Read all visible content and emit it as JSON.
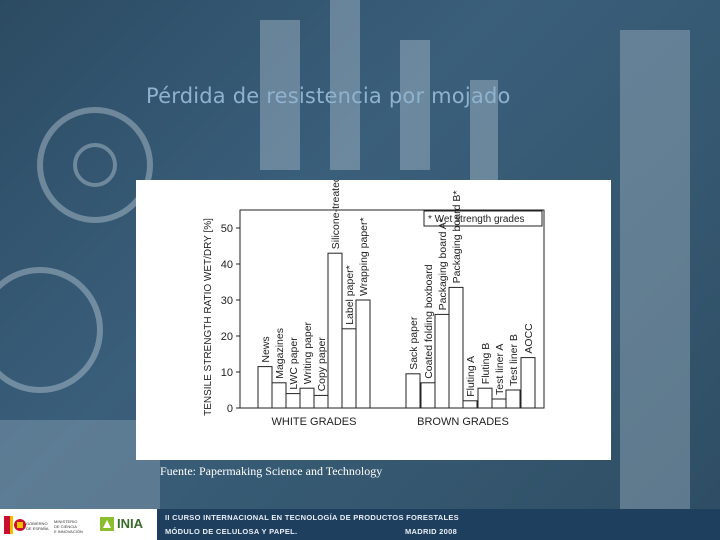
{
  "slide": {
    "title": "Pérdida de resistencia por mojado",
    "source": "Fuente: Papermaking Science and Technology"
  },
  "footer": {
    "line1": "II CURSO INTERNACIONAL EN TECNOLOGÍA DE PRODUCTOS FORESTALES",
    "line2": "MÓDULO DE CELULOSA Y PAPEL.",
    "line3": "MADRID 2008",
    "logo_gob_1": "GOBIERNO",
    "logo_gob_2": "DE ESPAÑA",
    "logo_min_1": "MINISTERIO",
    "logo_min_2": "DE CIENCIA",
    "logo_min_3": "E INNOVACIÓN",
    "logo_inia": "INIA",
    "colors": {
      "band": "#1f3f5f",
      "text": "#e8eef4"
    }
  },
  "chart_data": {
    "type": "bar",
    "ylabel": "TENSILE STRENGTH RATIO WET/DRY [%]",
    "ylim": [
      0,
      55
    ],
    "yticks": [
      0,
      10,
      20,
      30,
      40,
      50
    ],
    "legend": "* Wet strength grades",
    "legend_position": "top-right",
    "groups": [
      "WHITE GRADES",
      "BROWN GRADES"
    ],
    "categories": [
      "News",
      "Magazines",
      "LWC paper",
      "Writing paper",
      "Copy paper",
      "Silicone-treated base paper",
      "Label paper*",
      "Wrapping paper*",
      "Sack paper",
      "Coated folding boxboard",
      "Packaging board A*",
      "Packaging board B*",
      "Fluting A",
      "Fluting B",
      "Test liner A",
      "Test liner B",
      "AOCC"
    ],
    "category_group": [
      0,
      0,
      0,
      0,
      0,
      0,
      0,
      0,
      1,
      1,
      1,
      1,
      1,
      1,
      1,
      1,
      1
    ],
    "values": [
      11.5,
      7,
      4,
      5.5,
      3.5,
      43,
      22,
      30,
      9.5,
      7,
      26,
      33.5,
      2,
      5.5,
      2.5,
      5,
      14
    ]
  }
}
